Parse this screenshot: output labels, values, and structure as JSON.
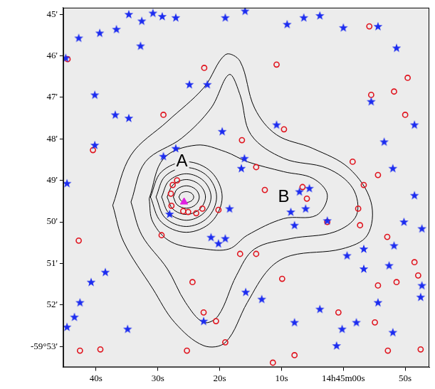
{
  "chart_data": {
    "type": "scatter",
    "xlim": [
      45.3,
      -13.9
    ],
    "xticks": [
      {
        "value": 40,
        "label": "40s"
      },
      {
        "value": 30,
        "label": "30s"
      },
      {
        "value": 20,
        "label": "20s"
      },
      {
        "value": 10,
        "label": "10s"
      },
      {
        "value": 0,
        "label": "14h45m00s"
      },
      {
        "value": -10,
        "label": "50s"
      }
    ],
    "ylim": [
      53.5,
      44.84
    ],
    "yticks": [
      {
        "value": 45,
        "label": "45'"
      },
      {
        "value": 46,
        "label": "46'"
      },
      {
        "value": 47,
        "label": "47'"
      },
      {
        "value": 48,
        "label": "48'"
      },
      {
        "value": 49,
        "label": "49'"
      },
      {
        "value": 50,
        "label": "50'"
      },
      {
        "value": 51,
        "label": "51'"
      },
      {
        "value": 52,
        "label": "52'"
      },
      {
        "value": 53,
        "label": "-59°53'"
      }
    ],
    "grid": false,
    "series": [
      {
        "type": "line",
        "color": "#000000",
        "line_style": "solid",
        "x": [
          37.3,
          34.35,
          28.47,
          22.59,
          19.06,
          16.71,
          14.35,
          10.82,
          4.94,
          -0.94,
          -4.47,
          -3.88,
          0.24,
          8.47,
          12.0,
          15.53,
          19.06,
          22.59,
          27.29,
          30.82,
          35.53
        ],
        "y": [
          49.6,
          48.39,
          47.58,
          46.77,
          45.97,
          46.13,
          47.26,
          47.9,
          48.23,
          48.71,
          49.52,
          50.32,
          50.65,
          50.81,
          51.13,
          51.94,
          52.9,
          52.98,
          52.42,
          51.61,
          50.48
        ]
      },
      {
        "type": "line",
        "color": "#000000",
        "line_style": "solid",
        "x": [
          34.35,
          32.0,
          26.12,
          21.41,
          18.47,
          16.71,
          14.94,
          9.65,
          2.59,
          -1.53,
          -2.12,
          1.41,
          8.47,
          14.35,
          17.29,
          20.24,
          22.59,
          25.53,
          28.47,
          32.59
        ],
        "y": [
          49.52,
          48.55,
          47.98,
          47.26,
          46.45,
          46.94,
          47.9,
          48.47,
          48.71,
          49.19,
          49.84,
          50.24,
          50.4,
          50.65,
          51.29,
          52.26,
          52.42,
          51.94,
          51.13,
          50.32
        ]
      },
      {
        "type": "line",
        "color": "#000000",
        "line_style": "solid",
        "x": [
          31.41,
          29.06,
          23.76,
          19.06,
          15.53,
          9.65,
          4.94,
          2.59,
          4.35,
          9.65,
          15.53,
          18.47,
          22.59,
          27.88,
          30.82
        ],
        "y": [
          49.44,
          48.47,
          48.15,
          48.31,
          48.55,
          48.79,
          48.95,
          49.35,
          49.84,
          49.92,
          50.32,
          50.65,
          50.65,
          50.48,
          50.0
        ]
      },
      {
        "type": "line",
        "color": "#000000",
        "line_style": "solid",
        "x": [
          31.2,
          29.46,
          25.4,
          21.34,
          19.6,
          21.34,
          25.4,
          29.46
        ],
        "y": [
          49.4,
          48.8,
          48.55,
          48.8,
          49.4,
          50.0,
          50.25,
          50.0
        ]
      },
      {
        "type": "line",
        "color": "#000000",
        "line_style": "solid",
        "x": [
          30.3,
          28.83,
          25.4,
          21.97,
          20.5,
          21.97,
          25.4,
          28.83
        ],
        "y": [
          49.4,
          48.9,
          48.69,
          48.9,
          49.4,
          49.9,
          50.11,
          49.9
        ]
      },
      {
        "type": "line",
        "color": "#000000",
        "line_style": "solid",
        "x": [
          29.4,
          28.2,
          25.4,
          22.6,
          21.4,
          22.6,
          25.4,
          28.2
        ],
        "y": [
          49.4,
          49.01,
          48.84,
          49.01,
          49.4,
          49.79,
          49.96,
          49.79
        ]
      },
      {
        "type": "line",
        "color": "#000000",
        "line_style": "solid",
        "x": [
          28.5,
          27.57,
          25.4,
          23.23,
          22.3,
          23.23,
          25.4,
          27.57
        ],
        "y": [
          49.4,
          49.11,
          48.98,
          49.11,
          49.4,
          49.69,
          49.82,
          49.69
        ]
      },
      {
        "type": "line",
        "color": "#000000",
        "line_style": "solid",
        "x": [
          27.5,
          26.87,
          25.4,
          23.93,
          23.3,
          23.93,
          25.4,
          26.87
        ],
        "y": [
          49.4,
          49.21,
          49.13,
          49.21,
          49.4,
          49.59,
          49.67,
          49.59
        ]
      },
      {
        "type": "line",
        "color": "#000000",
        "line_style": "solid",
        "x": [
          26.6,
          26.25,
          25.4,
          24.55,
          24.2,
          24.55,
          25.4,
          26.25
        ],
        "y": [
          49.4,
          49.31,
          49.27,
          49.31,
          49.4,
          49.49,
          49.53,
          49.49
        ]
      },
      {
        "type": "scatter",
        "marker": "star",
        "color": "#1c2cf0",
        "x": [
          44.9,
          42.8,
          39.4,
          36.7,
          34.7,
          30.8,
          29.3,
          32.6,
          27.1,
          19.1,
          15.9,
          3.8,
          0.0,
          -5.6,
          -8.6,
          40.2,
          36.9,
          34.7,
          24.9,
          22.0,
          27.1,
          19.6,
          29.1,
          16.0,
          8.5,
          7.1,
          5.5,
          6.1,
          7.9,
          18.4,
          19.1,
          21.4,
          20.2,
          28.1,
          2.6,
          -0.6,
          -3.3,
          -8.0,
          -11.5,
          -9.8,
          -12.7,
          -8.2,
          -7.4,
          -12.7,
          -3.3,
          -2.1,
          0.2,
          -8.0,
          -5.6,
          3.8,
          7.9,
          13.2,
          38.5,
          40.8,
          42.6,
          43.5,
          44.7,
          34.9,
          22.6,
          15.8,
          16.5,
          10.8,
          40.2,
          44.7,
          -4.5,
          -11.5,
          -6.6,
          1.1,
          -12.5,
          6.4,
          9.1,
          32.8
        ],
        "y": [
          46.05,
          45.57,
          45.45,
          45.36,
          45.0,
          44.97,
          45.05,
          45.16,
          45.08,
          45.08,
          44.92,
          45.03,
          45.32,
          45.29,
          45.81,
          46.94,
          47.42,
          47.5,
          46.69,
          46.69,
          48.23,
          47.82,
          48.42,
          48.47,
          49.76,
          49.27,
          49.19,
          49.68,
          50.08,
          49.68,
          50.4,
          50.37,
          50.52,
          49.81,
          49.97,
          50.81,
          50.65,
          48.71,
          49.36,
          50.0,
          50.16,
          50.57,
          51.05,
          51.53,
          51.13,
          52.42,
          52.58,
          52.66,
          51.94,
          52.1,
          52.42,
          51.86,
          51.21,
          51.45,
          51.94,
          52.29,
          52.53,
          52.58,
          52.39,
          51.69,
          48.71,
          47.66,
          48.15,
          49.07,
          47.1,
          47.66,
          48.07,
          52.98,
          51.81,
          45.08,
          45.24,
          45.76
        ]
      },
      {
        "type": "scatter",
        "marker": "circle",
        "color": "#e0141e",
        "x": [
          44.6,
          10.8,
          -4.2,
          -10.4,
          -8.2,
          -4.5,
          -10.0,
          -1.5,
          -3.3,
          -5.6,
          -2.4,
          -2.7,
          2.6,
          5.9,
          6.6,
          12.7,
          14.1,
          16.4,
          22.5,
          29.1,
          40.5,
          42.8,
          26.9,
          27.6,
          27.8,
          25.1,
          23.8,
          22.8,
          20.2,
          25.9,
          29.4,
          24.4,
          16.7,
          9.9,
          22.6,
          20.6,
          19.1,
          25.3,
          42.6,
          39.3,
          9.9,
          -12.1,
          -8.6,
          -7.1,
          -11.5,
          -5.1,
          -12.5,
          -7.2,
          0.8,
          -5.6,
          9.6,
          11.4,
          7.9,
          27.9,
          14.1
        ],
        "y": [
          46.08,
          46.21,
          45.29,
          46.53,
          46.86,
          46.94,
          47.42,
          48.55,
          49.11,
          48.87,
          49.68,
          50.08,
          50.0,
          49.44,
          49.16,
          49.23,
          48.68,
          48.03,
          46.29,
          47.42,
          48.27,
          50.45,
          49.0,
          49.11,
          49.61,
          49.76,
          49.79,
          49.68,
          49.71,
          49.74,
          50.32,
          51.45,
          50.77,
          51.37,
          52.18,
          52.39,
          52.9,
          53.1,
          53.1,
          53.07,
          49.36,
          51.29,
          51.45,
          50.36,
          50.97,
          52.42,
          53.07,
          53.1,
          52.18,
          51.53,
          47.77,
          53.39,
          53.21,
          49.32,
          50.77
        ]
      },
      {
        "type": "scatter",
        "marker": "triangle",
        "color": "#e020e0",
        "x": [
          25.76
        ],
        "y": [
          49.52
        ]
      }
    ],
    "annotations": [
      {
        "text": "A",
        "x": 26.1,
        "y": 48.55
      },
      {
        "text": "B",
        "x": 9.65,
        "y": 49.4
      }
    ]
  }
}
